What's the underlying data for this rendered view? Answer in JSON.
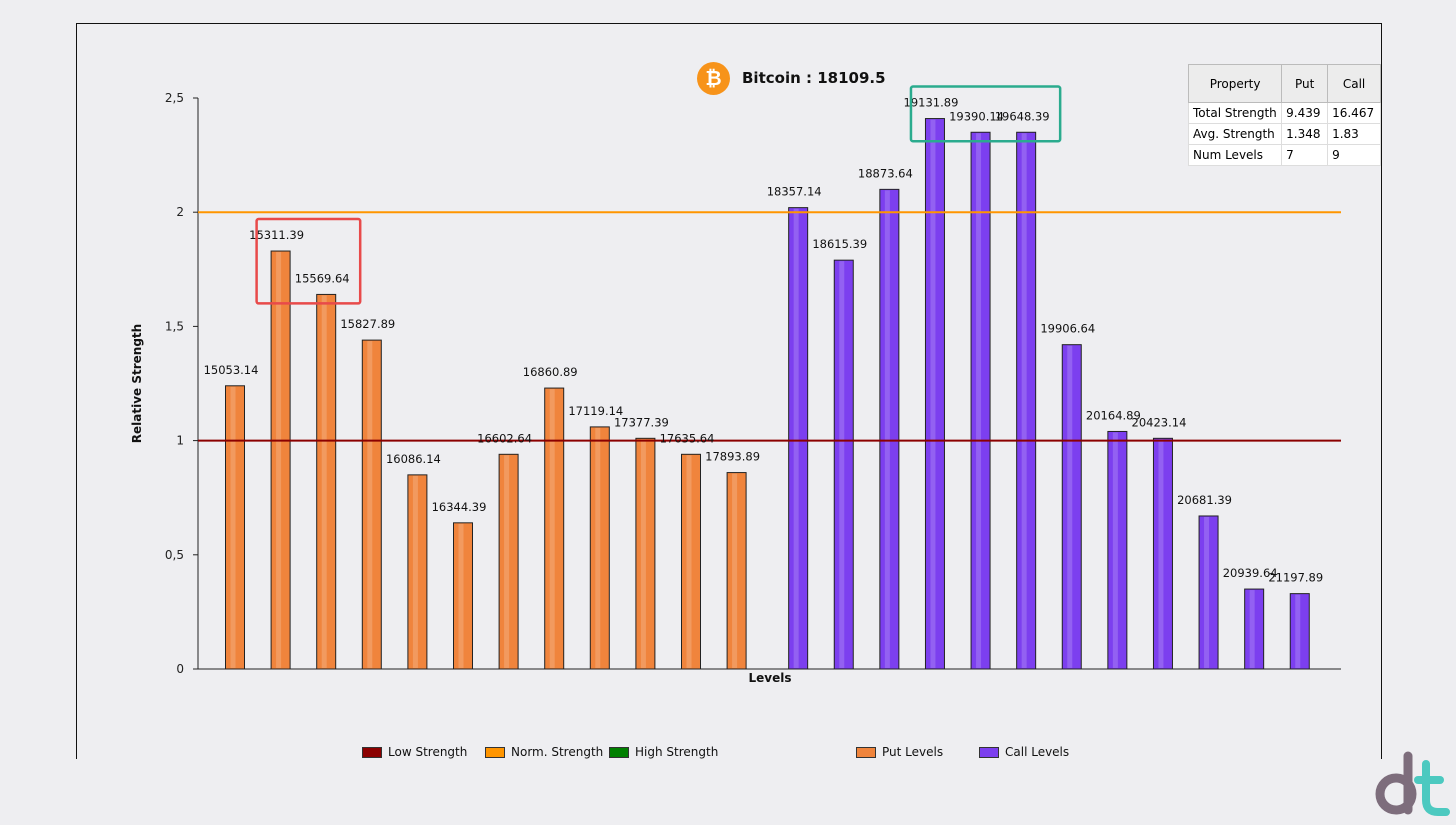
{
  "chart_data": {
    "type": "bar",
    "title": "Bitcoin : 18109.5",
    "ylabel": "Relative Strength",
    "xlabel": "Levels",
    "ylim": [
      0,
      2.5
    ],
    "yticks": [
      0,
      0.5,
      1,
      1.5,
      2,
      2.5
    ],
    "ytick_labels": [
      "0",
      "0,5",
      "1",
      "1,5",
      "2",
      "2,5"
    ],
    "grid": false,
    "reference_lines": [
      {
        "name": "Low Strength",
        "value": 1,
        "color": "#8b0000"
      },
      {
        "name": "Norm. Strength",
        "value": 2,
        "color": "#ff9500"
      }
    ],
    "series": [
      {
        "name": "Put Levels",
        "color": "#f0843c",
        "categories": [
          "15053.14",
          "15311.39",
          "15569.64",
          "15827.89",
          "16086.14",
          "16344.39",
          "16602.64",
          "16860.89",
          "17119.14",
          "17377.39",
          "17635.64",
          "17893.89"
        ],
        "values": [
          1.24,
          1.83,
          1.64,
          1.44,
          0.85,
          0.64,
          0.94,
          1.23,
          1.06,
          1.01,
          0.94,
          0.86
        ]
      },
      {
        "name": "Call Levels",
        "color": "#7c3fef",
        "categories": [
          "18357.14",
          "18615.39",
          "18873.64",
          "19131.89",
          "19390.14",
          "19648.39",
          "19906.64",
          "20164.89",
          "20423.14",
          "20681.39",
          "20939.64",
          "21197.89"
        ],
        "values": [
          2.02,
          1.79,
          2.1,
          2.41,
          2.35,
          2.35,
          1.42,
          1.04,
          1.01,
          0.67,
          0.35,
          0.33
        ]
      }
    ],
    "highlights": [
      {
        "color": "#e84a4a",
        "covers": [
          "15311.39",
          "15569.64"
        ]
      },
      {
        "color": "#2aab8e",
        "covers": [
          "19131.89",
          "19390.14",
          "19648.39"
        ]
      }
    ]
  },
  "table": {
    "headers": [
      "Property",
      "Put",
      "Call"
    ],
    "rows": [
      [
        "Total Strength",
        "9.439",
        "16.467"
      ],
      [
        "Avg. Strength",
        "1.348",
        "1.83"
      ],
      [
        "Num Levels",
        "7",
        "9"
      ]
    ]
  },
  "legend": [
    {
      "label": "Low Strength",
      "color": "#8b0000"
    },
    {
      "label": "Norm. Strength",
      "color": "#ff9500"
    },
    {
      "label": "High Strength",
      "color": "#008000"
    },
    {
      "label": "Put Levels",
      "color": "#f0843c"
    },
    {
      "label": "Call Levels",
      "color": "#7c3fef"
    }
  ],
  "icons": {
    "title_logo": "bitcoin-icon",
    "brand_logo": "dt-logo-icon"
  },
  "title_logo_glyph": "₿"
}
